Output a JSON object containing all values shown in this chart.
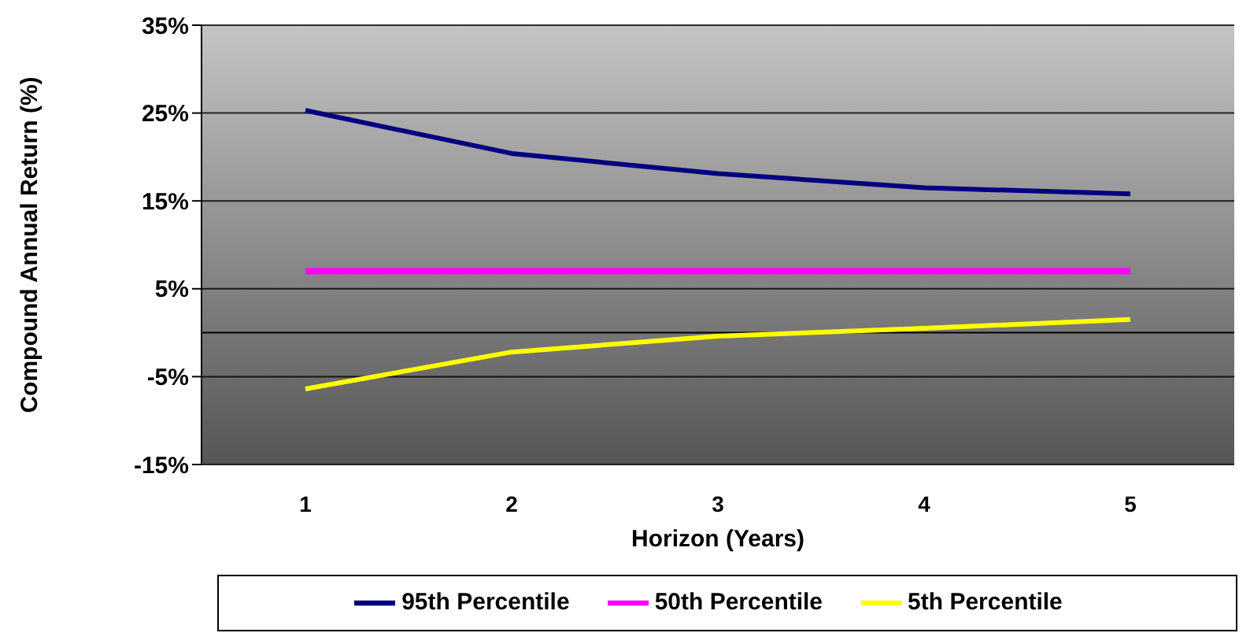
{
  "chart_data": {
    "type": "line",
    "xlabel": "Horizon (Years)",
    "ylabel": "Compound Annual Return (%)",
    "categories": [
      "1",
      "2",
      "3",
      "4",
      "5"
    ],
    "series": [
      {
        "name": "95th Percentile",
        "color": "#000080",
        "values": [
          25.3,
          20.4,
          18.1,
          16.5,
          15.8
        ]
      },
      {
        "name": "50th Percentile",
        "color": "#ff00ff",
        "values": [
          7.0,
          7.0,
          7.0,
          7.0,
          7.0
        ]
      },
      {
        "name": "5th Percentile",
        "color": "#ffff00",
        "values": [
          -6.4,
          -2.2,
          -0.4,
          0.5,
          1.5
        ]
      }
    ],
    "ylim": [
      -15,
      35
    ],
    "yticks": [
      {
        "value": -15,
        "label": "-15%"
      },
      {
        "value": -5,
        "label": "-5%"
      },
      {
        "value": 5,
        "label": "5%"
      },
      {
        "value": 15,
        "label": "15%"
      },
      {
        "value": 25,
        "label": "25%"
      },
      {
        "value": 35,
        "label": "35%"
      }
    ],
    "ref_lines": [
      {
        "axis": "y",
        "value": 0,
        "color": "#000000"
      }
    ],
    "grid": "y",
    "legend": "bottom",
    "marker": "none",
    "line_style": "solid"
  }
}
